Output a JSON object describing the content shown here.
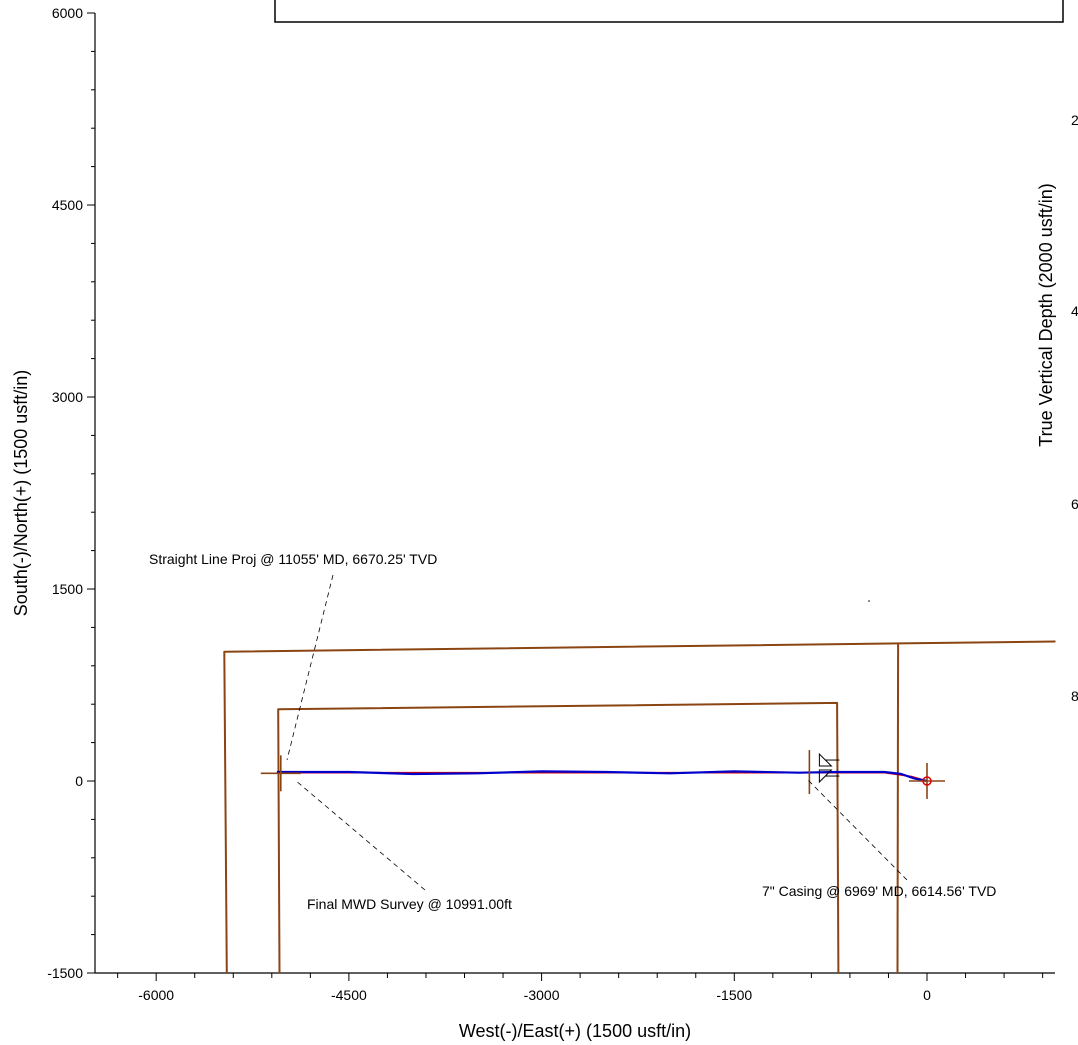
{
  "chart_data": {
    "type": "line",
    "xlabel": "West(-)/East(+) (1500 usft/in)",
    "ylabel": "South(-)/North(+) (1500 usft/in)",
    "xlim": [
      -6600,
      1000
    ],
    "ylim": [
      -1500,
      6000
    ],
    "x_ticks": [
      -6000,
      -4500,
      -3000,
      -1500,
      0
    ],
    "y_ticks": [
      6000,
      4500,
      3000,
      1500,
      0,
      -1500
    ],
    "x_minor_step": 300,
    "y_minor_step": 300,
    "grid": false,
    "series": [
      {
        "role": "wellbore-actual",
        "color": "#0000cc",
        "x": [
          0,
          -100,
          -200,
          -330,
          -700,
          -1000,
          -1500,
          -2000,
          -2500,
          -3000,
          -3500,
          -4000,
          -4500,
          -5000,
          -5060
        ],
        "y": [
          0,
          20,
          55,
          70,
          70,
          65,
          75,
          60,
          70,
          75,
          60,
          55,
          70,
          70,
          70
        ]
      },
      {
        "role": "wellbore-plan",
        "color": "#e00000",
        "x": [
          0,
          -120,
          -330,
          -5060
        ],
        "y": [
          0,
          35,
          65,
          65
        ]
      },
      {
        "role": "lease-line-outer",
        "color": "#8b4513",
        "x": [
          -5450,
          -5470,
          1000
        ],
        "y": [
          -1500,
          1010,
          1090
        ]
      },
      {
        "role": "setback-line-inner",
        "color": "#8b4513",
        "x": [
          -5040,
          -5050,
          -700,
          -690
        ],
        "y": [
          -1500,
          560,
          610,
          -1500
        ]
      },
      {
        "role": "section-line-east",
        "color": "#8b4513",
        "x": [
          -230,
          -225
        ],
        "y": [
          -1500,
          1070
        ]
      }
    ],
    "markers": [
      {
        "role": "surface-location",
        "x": 0,
        "y": 0,
        "color": "#e00000"
      },
      {
        "role": "casing-point",
        "x": -900,
        "y": 70
      },
      {
        "role": "bottom-hole",
        "x": -5030,
        "y": 60
      }
    ],
    "annotations": [
      {
        "text": "Straight Line Proj @ 11055' MD, 6670.25' TVD",
        "x": -4950,
        "y": 90
      },
      {
        "text": "Final MWD Survey @ 10991.00ft",
        "x": -4950,
        "y": 60
      },
      {
        "text": "7\" Casing @ 6969'  MD, 6614.56' TVD",
        "x": -720,
        "y": 50
      }
    ]
  },
  "side_axis": {
    "label": "True Vertical Depth (2000 usft/in)",
    "tick_fragments": [
      "2",
      "4",
      "6",
      "8"
    ]
  }
}
